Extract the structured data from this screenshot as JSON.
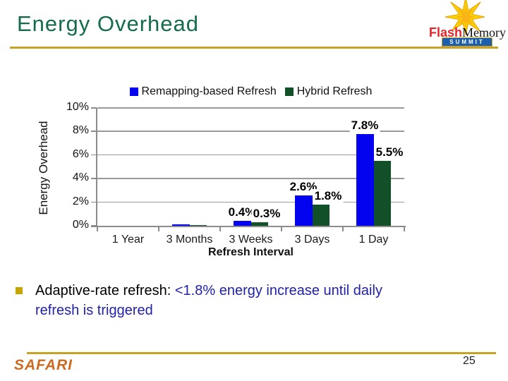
{
  "slide": {
    "title": "Energy Overhead",
    "page_number": "25",
    "footer_logo": "SAFARI",
    "accent_gold": "#C6A225",
    "title_color": "#156B4B"
  },
  "logo": {
    "flash": "Flash",
    "memory": "Memory",
    "summit": "SUMMIT"
  },
  "chart_data": {
    "type": "bar",
    "title": "",
    "xlabel": "Refresh Interval",
    "ylabel": "Energy Overhead",
    "categories": [
      "1 Year",
      "3 Months",
      "3 Weeks",
      "3 Days",
      "1 Day"
    ],
    "series": [
      {
        "name": "Remapping-based Refresh",
        "color": "#0303F0",
        "values": [
          0,
          0.1,
          0.4,
          2.6,
          7.8
        ],
        "labels": [
          null,
          null,
          "0.4%",
          "2.6%",
          "7.8%"
        ]
      },
      {
        "name": "Hybrid Refresh",
        "color": "#12502A",
        "values": [
          0,
          0.05,
          0.3,
          1.8,
          5.5
        ],
        "labels": [
          null,
          null,
          "0.3%",
          "1.8%",
          "5.5%"
        ]
      }
    ],
    "ylim": [
      0,
      10
    ],
    "ytick_step": 2,
    "ytick_labels": [
      "0%",
      "2%",
      "4%",
      "6%",
      "8%",
      "10%"
    ],
    "grid": true,
    "legend_position": "top"
  },
  "bullet": {
    "text_black": "Adaptive-rate refresh: ",
    "text_blue_line1": "<1.8% energy increase until daily",
    "text_blue_line2": "refresh is triggered"
  }
}
